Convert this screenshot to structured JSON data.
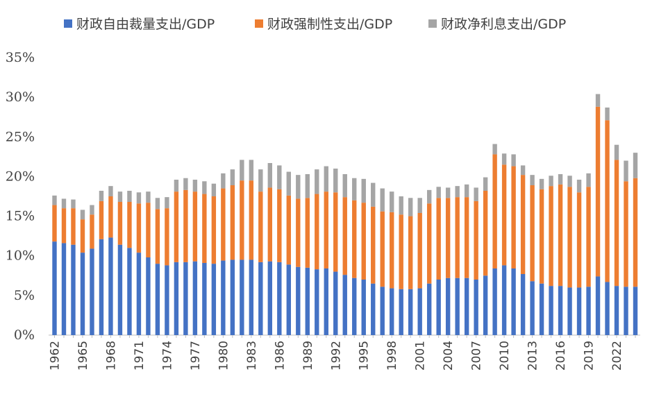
{
  "chart_data": {
    "type": "bar",
    "stacked": true,
    "title": "",
    "xlabel": "",
    "ylabel": "",
    "ylim": [
      0,
      35
    ],
    "y_ticks": [
      "0%",
      "5%",
      "10%",
      "15%",
      "20%",
      "25%",
      "30%",
      "35%"
    ],
    "grid": false,
    "legend_position": "top",
    "x_tick_labels": [
      "1962",
      "1965",
      "1968",
      "1971",
      "1974",
      "1977",
      "1980",
      "1983",
      "1986",
      "1989",
      "1992",
      "1995",
      "1998",
      "2001",
      "2004",
      "2007",
      "2010",
      "2013",
      "2016",
      "2019",
      "2022"
    ],
    "categories": [
      "1962",
      "1963",
      "1964",
      "1965",
      "1966",
      "1967",
      "1968",
      "1969",
      "1970",
      "1971",
      "1972",
      "1973",
      "1974",
      "1975",
      "1976",
      "1977",
      "1978",
      "1979",
      "1980",
      "1981",
      "1982",
      "1983",
      "1984",
      "1985",
      "1986",
      "1987",
      "1988",
      "1989",
      "1990",
      "1991",
      "1992",
      "1993",
      "1994",
      "1995",
      "1996",
      "1997",
      "1998",
      "1999",
      "2000",
      "2001",
      "2002",
      "2003",
      "2004",
      "2005",
      "2006",
      "2007",
      "2008",
      "2009",
      "2010",
      "2011",
      "2012",
      "2013",
      "2014",
      "2015",
      "2016",
      "2017",
      "2018",
      "2019",
      "2020",
      "2021",
      "2022",
      "2023",
      "2024"
    ],
    "series": [
      {
        "name": "财政自由裁量支出/GDP",
        "color": "#4472C4",
        "values": [
          11.8,
          11.6,
          11.4,
          10.4,
          10.9,
          12.1,
          12.3,
          11.4,
          11.0,
          10.4,
          9.8,
          9.0,
          8.8,
          9.2,
          9.2,
          9.3,
          9.1,
          9.0,
          9.4,
          9.5,
          9.5,
          9.5,
          9.2,
          9.3,
          9.2,
          8.9,
          8.6,
          8.5,
          8.3,
          8.4,
          8.0,
          7.6,
          7.2,
          7.0,
          6.5,
          6.1,
          5.9,
          5.8,
          5.8,
          5.9,
          6.5,
          7.0,
          7.2,
          7.2,
          7.2,
          7.0,
          7.5,
          8.4,
          8.8,
          8.4,
          7.7,
          6.8,
          6.5,
          6.2,
          6.2,
          6.0,
          6.0,
          6.1,
          7.4,
          6.7,
          6.2,
          6.1,
          6.1
        ]
      },
      {
        "name": "财政强制性支出/GDP",
        "color": "#ED7D31",
        "values": [
          4.6,
          4.4,
          4.6,
          4.2,
          4.3,
          4.8,
          5.2,
          5.4,
          5.8,
          6.2,
          6.9,
          6.9,
          7.2,
          8.9,
          9.1,
          8.8,
          8.7,
          8.5,
          9.1,
          9.4,
          10.0,
          10.0,
          8.9,
          9.3,
          9.2,
          8.7,
          8.6,
          8.8,
          9.5,
          9.7,
          10.0,
          9.8,
          9.8,
          9.7,
          9.7,
          9.5,
          9.6,
          9.4,
          9.2,
          9.5,
          10.1,
          10.3,
          10.1,
          10.2,
          10.2,
          9.9,
          10.7,
          14.4,
          12.7,
          12.9,
          12.5,
          12.1,
          11.9,
          12.6,
          12.8,
          12.7,
          12.0,
          12.6,
          21.4,
          20.4,
          15.9,
          13.3,
          13.7
        ]
      },
      {
        "name": "财政净利息支出/GDP",
        "color": "#A5A5A5",
        "values": [
          1.2,
          1.2,
          1.1,
          1.2,
          1.2,
          1.3,
          1.3,
          1.3,
          1.4,
          1.4,
          1.4,
          1.4,
          1.4,
          1.5,
          1.5,
          1.5,
          1.6,
          1.6,
          1.9,
          2.0,
          2.6,
          2.6,
          2.8,
          3.1,
          3.0,
          3.0,
          3.0,
          3.0,
          3.1,
          3.2,
          3.0,
          2.9,
          2.8,
          3.0,
          3.0,
          2.9,
          2.6,
          2.3,
          2.3,
          1.9,
          1.7,
          1.4,
          1.3,
          1.4,
          1.6,
          1.7,
          1.7,
          1.3,
          1.4,
          1.5,
          1.2,
          1.3,
          1.3,
          1.3,
          1.3,
          1.4,
          1.6,
          1.7,
          1.6,
          1.6,
          1.9,
          2.6,
          3.2
        ]
      }
    ]
  }
}
